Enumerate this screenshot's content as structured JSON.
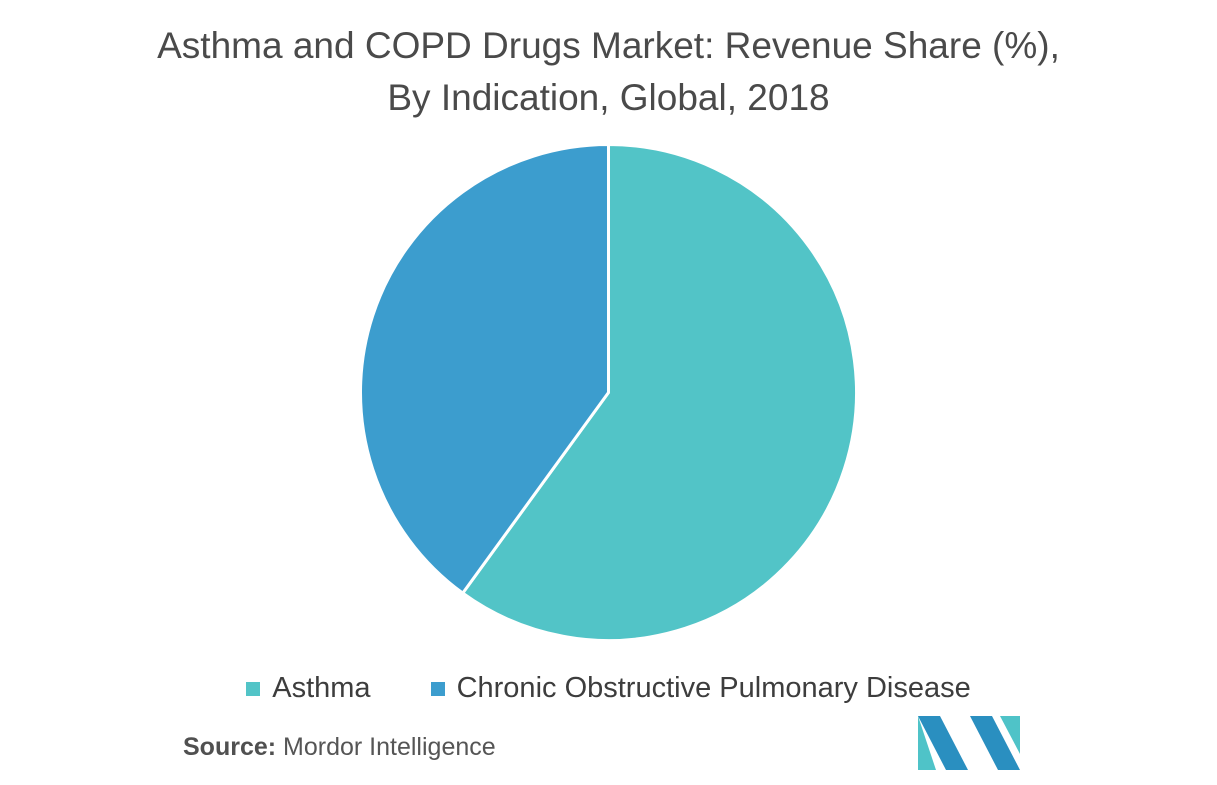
{
  "title": {
    "line1": "Asthma and COPD Drugs Market: Revenue Share (%),",
    "line2": "By Indication, Global, 2018"
  },
  "chart_data": {
    "type": "pie",
    "title": "Asthma and COPD Drugs Market: Revenue Share (%), By Indication, Global, 2018",
    "slices": [
      {
        "label": "Asthma",
        "value": 60,
        "color": "#52c4c7"
      },
      {
        "label": "Chronic Obstructive Pulmonary Disease",
        "value": 40,
        "color": "#3c9dce"
      }
    ],
    "start_angle": "12 o'clock",
    "direction": "clockwise",
    "legend_position": "bottom"
  },
  "legend": {
    "items": [
      {
        "label": "Asthma",
        "color": "#52c4c7"
      },
      {
        "label": "Chronic Obstructive Pulmonary Disease",
        "color": "#3c9dce"
      }
    ]
  },
  "source": {
    "prefix": "Source:",
    "text": "Mordor Intelligence"
  },
  "logo": {
    "icon": "mordor-intelligence-logo",
    "colors": [
      "#2a8fc0",
      "#4fc3c8"
    ]
  }
}
